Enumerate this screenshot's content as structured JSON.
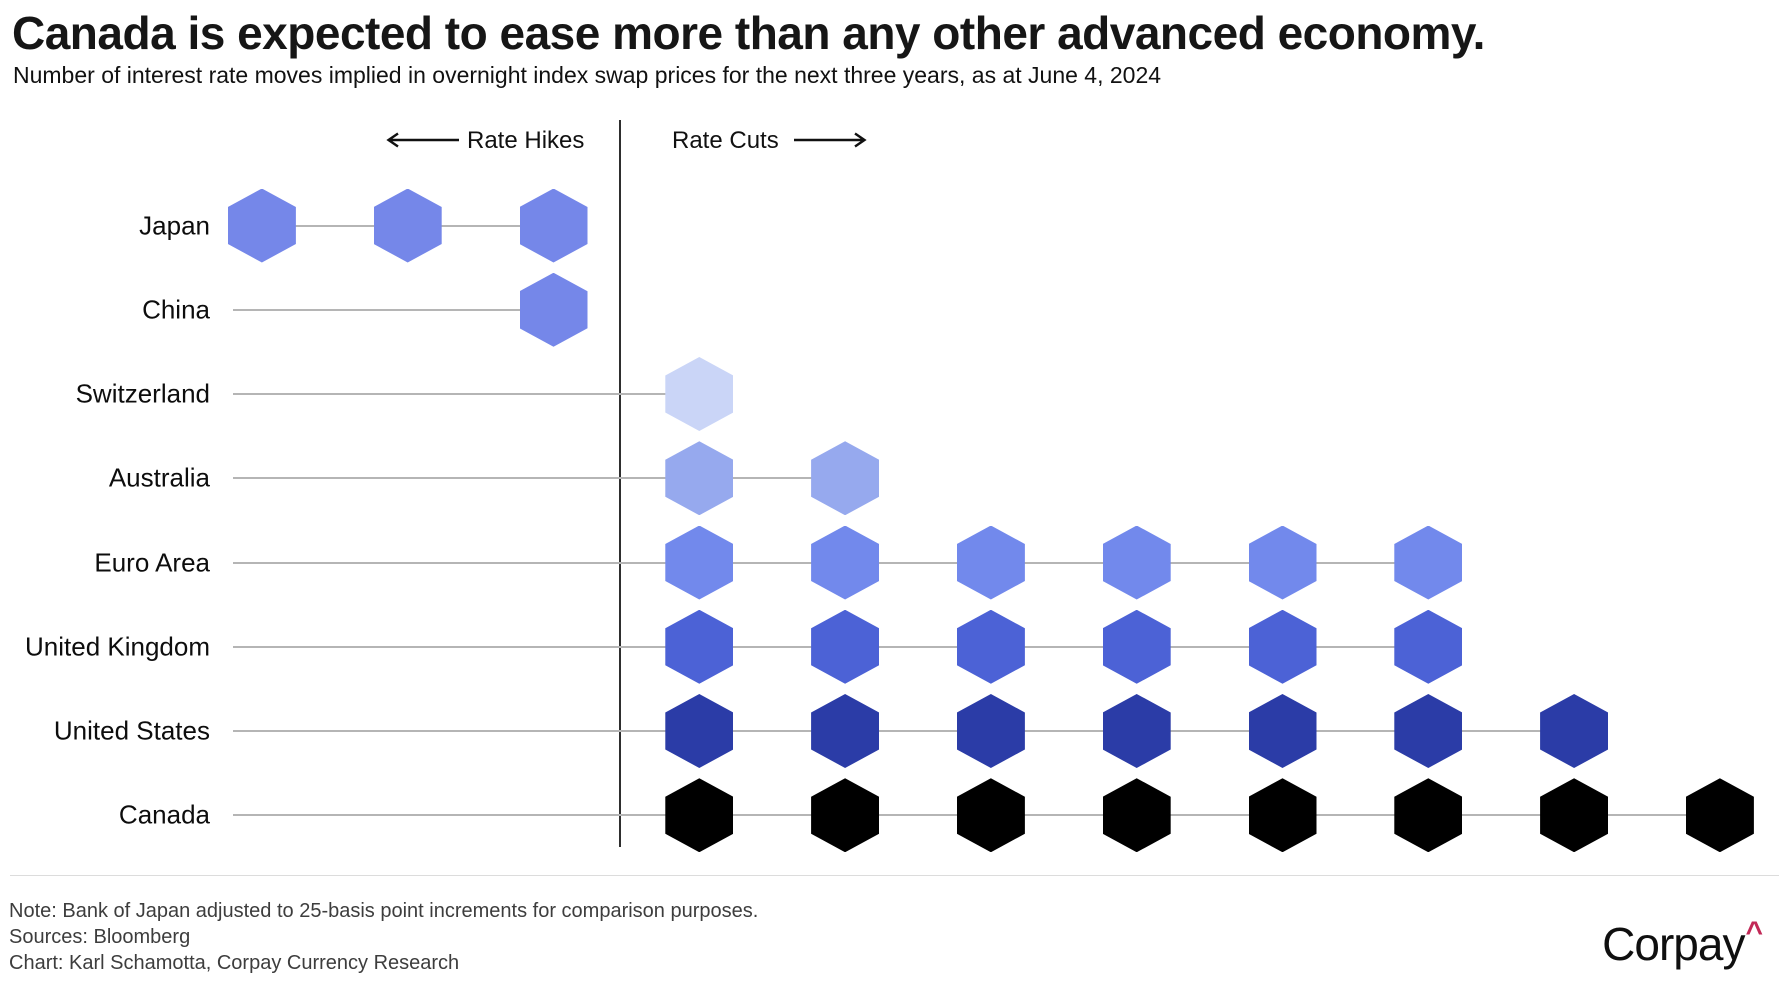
{
  "header": {
    "title": "Canada is expected to ease more than any other advanced economy.",
    "subtitle": "Number of interest rate moves implied in overnight index swap prices for the next three years, as at June 4, 2024"
  },
  "chart_data": {
    "type": "dot-strip",
    "marker": "hexagon",
    "title": "Canada is expected to ease more than any other advanced economy.",
    "subtitle": "Number of interest rate moves implied in overnight index swap prices for the next three years, as at June 4, 2024",
    "x_axis": {
      "left_label": "Rate Hikes",
      "right_label": "Rate Cuts",
      "unit": "number of implied 25-basis-point rate moves"
    },
    "rows": [
      {
        "country": "Japan",
        "rate_hikes": 3,
        "rate_cuts": 0,
        "color": "#7587E9"
      },
      {
        "country": "China",
        "rate_hikes": 1,
        "rate_cuts": 0,
        "color": "#7587E9"
      },
      {
        "country": "Switzerland",
        "rate_hikes": 0,
        "rate_cuts": 1,
        "color": "#CAD5F7"
      },
      {
        "country": "Australia",
        "rate_hikes": 0,
        "rate_cuts": 2,
        "color": "#96A9EE"
      },
      {
        "country": "Euro Area",
        "rate_hikes": 0,
        "rate_cuts": 6,
        "color": "#7289EC"
      },
      {
        "country": "United Kingdom",
        "rate_hikes": 0,
        "rate_cuts": 6,
        "color": "#4C62D6"
      },
      {
        "country": "United States",
        "rate_hikes": 0,
        "rate_cuts": 7,
        "color": "#2B3CA7"
      },
      {
        "country": "Canada",
        "rate_hikes": 0,
        "rate_cuts": 8,
        "color": "#000000"
      }
    ],
    "layout": {
      "legend": false,
      "grid": false,
      "divider": "zero-line between hikes and cuts"
    }
  },
  "footer": {
    "note": "Note: Bank of Japan adjusted to 25-basis point increments for comparison purposes.",
    "sources": "Sources: Bloomberg",
    "credit": "Chart: Karl Schamotta, Corpay Currency Research",
    "logo_text": "Corpay",
    "logo_caret": "^",
    "logo_caret_color": "#C22957"
  }
}
